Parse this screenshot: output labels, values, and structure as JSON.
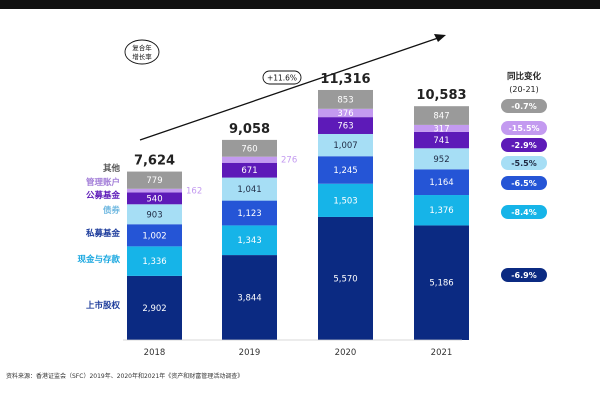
{
  "header_strip": "",
  "cagr_bubble": "复合年\n增长率",
  "cagr_value": "+11.6%",
  "yoy_header": "同比变化",
  "yoy_period": "(20-21)",
  "source": "资料来源：香港证监会（SFC）2019年、2020年和2021年《资产和财富管理活动调查》",
  "chart_data": {
    "type": "bar",
    "stacked": true,
    "categories": [
      "2018",
      "2019",
      "2020",
      "2021"
    ],
    "totals": [
      7624,
      9058,
      11316,
      10583
    ],
    "total_labels": [
      "7,624",
      "9,058",
      "11,316",
      "10,583"
    ],
    "ylim": [
      0,
      11316
    ],
    "series": [
      {
        "name": "上市股权",
        "values": [
          2902,
          3844,
          5570,
          5186
        ],
        "labels": [
          "2,902",
          "3,844",
          "5,570",
          "5,186"
        ],
        "color": "#0b2a82",
        "label_color": "#ffffff",
        "name_color": "#1e3d9c",
        "yoy": "-6.9%",
        "yoy_bg": "#0b2a82",
        "yoy_fg": "#ffffff"
      },
      {
        "name": "现金与存款",
        "values": [
          1336,
          1343,
          1503,
          1376
        ],
        "labels": [
          "1,336",
          "1,343",
          "1,503",
          "1,376"
        ],
        "color": "#16b4e8",
        "label_color": "#ffffff",
        "name_color": "#1ba8e0",
        "yoy": "-8.4%",
        "yoy_bg": "#16b4e8",
        "yoy_fg": "#ffffff"
      },
      {
        "name": "私募基金",
        "values": [
          1002,
          1123,
          1245,
          1164
        ],
        "labels": [
          "1,002",
          "1,123",
          "1,245",
          "1,164"
        ],
        "color": "#2555d6",
        "label_color": "#ffffff",
        "name_color": "#1e3d9c",
        "yoy": "-6.5%",
        "yoy_bg": "#2555d6",
        "yoy_fg": "#ffffff"
      },
      {
        "name": "债券",
        "values": [
          903,
          1041,
          1007,
          952
        ],
        "labels": [
          "903",
          "1,041",
          "1,007",
          "952"
        ],
        "color": "#a6def5",
        "label_color": "#1f2b44",
        "name_color": "#6fb8e0",
        "yoy": "-5.5%",
        "yoy_bg": "#a6def5",
        "yoy_fg": "#1f2b44"
      },
      {
        "name": "公募基金",
        "values": [
          540,
          671,
          763,
          741
        ],
        "labels": [
          "540",
          "671",
          "763",
          "741"
        ],
        "color": "#5d1ab8",
        "label_color": "#ffffff",
        "name_color": "#5d1ab8",
        "yoy": "-2.9%",
        "yoy_bg": "#5d1ab8",
        "yoy_fg": "#ffffff"
      },
      {
        "name": "管理账户",
        "values": [
          162,
          276,
          376,
          317
        ],
        "labels": [
          "162",
          "276",
          "376",
          "317"
        ],
        "color": "#c39af0",
        "label_color": "#ffffff",
        "name_color": "#a37ed8",
        "yoy": "-15.5%",
        "yoy_bg": "#c39af0",
        "yoy_fg": "#ffffff",
        "outside_labels": [
          true,
          true,
          false,
          false
        ]
      },
      {
        "name": "其他",
        "values": [
          779,
          760,
          853,
          847
        ],
        "labels": [
          "779",
          "760",
          "853",
          "847"
        ],
        "color": "#9a9a9a",
        "label_color": "#ffffff",
        "name_color": "#555555",
        "yoy": "-0.7%",
        "yoy_bg": "#9a9a9a",
        "yoy_fg": "#ffffff"
      }
    ]
  }
}
